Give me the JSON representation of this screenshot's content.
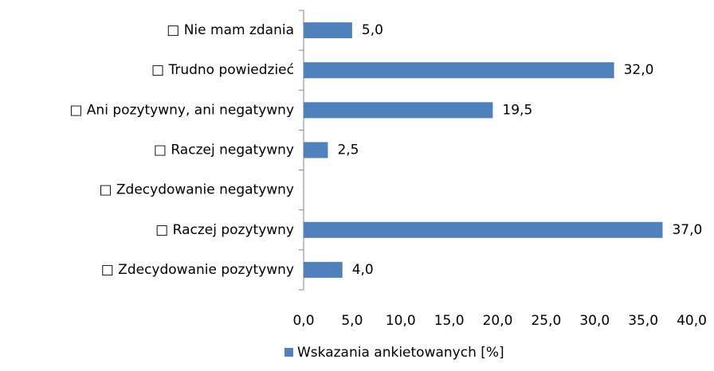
{
  "chart_data": {
    "type": "bar",
    "orientation": "horizontal",
    "categories": [
      "□ Nie mam zdania",
      "□ Trudno powiedzieć",
      "□ Ani pozytywny, ani negatywny",
      "□ Raczej negatywny",
      "□ Zdecydowanie negatywny",
      "□ Raczej pozytywny",
      "□ Zdecydowanie pozytywny"
    ],
    "series": [
      {
        "name": "Wskazania ankietowanych [%]",
        "color": "#4f81bd",
        "values": [
          5.0,
          32.0,
          19.5,
          2.5,
          null,
          37.0,
          4.0
        ],
        "value_labels": [
          "5,0",
          "32,0",
          "19,5",
          "2,5",
          null,
          "37,0",
          "4,0"
        ]
      }
    ],
    "xlim": [
      0,
      40
    ],
    "xticks": [
      {
        "value": 0,
        "label": "0,0"
      },
      {
        "value": 5,
        "label": "5,0"
      },
      {
        "value": 10,
        "label": "10,0"
      },
      {
        "value": 15,
        "label": "15,0"
      },
      {
        "value": 20,
        "label": "20,0"
      },
      {
        "value": 25,
        "label": "25,0"
      },
      {
        "value": 30,
        "label": "30,0"
      },
      {
        "value": 35,
        "label": "35,0"
      },
      {
        "value": 40,
        "label": "40,0"
      }
    ],
    "grid": false,
    "legend": "bottom"
  }
}
